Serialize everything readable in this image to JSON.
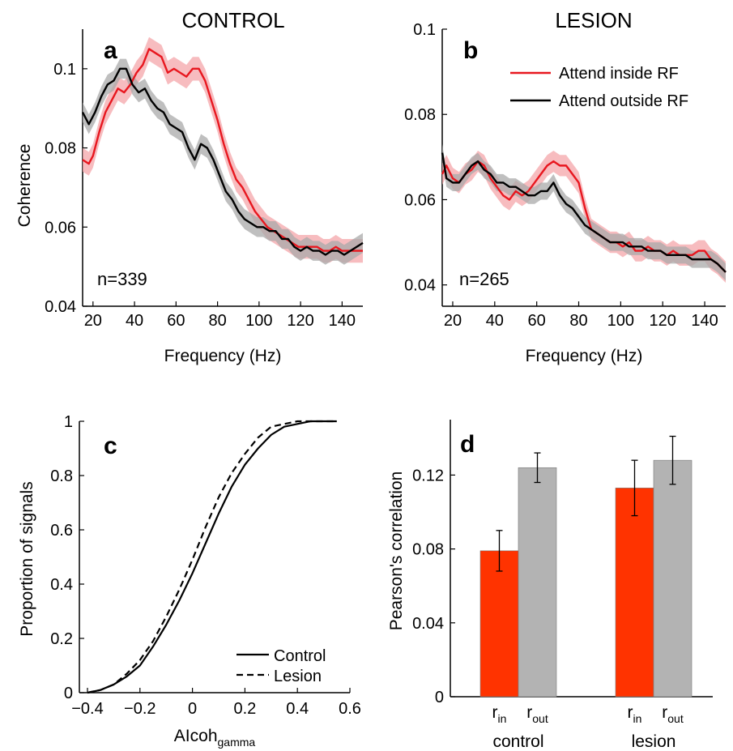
{
  "chart_data": [
    {
      "panel": "a",
      "type": "line",
      "title": "CONTROL",
      "xlabel": "Frequency (Hz)",
      "ylabel": "Coherence",
      "xlim": [
        15,
        150
      ],
      "ylim": [
        0.04,
        0.11
      ],
      "xticks": [
        "20",
        "40",
        "60",
        "80",
        "100",
        "120",
        "140"
      ],
      "yticks": [
        "0.04",
        "0.06",
        "0.08",
        "0.1"
      ],
      "annotation": "n=339",
      "series": [
        {
          "name": "Attend inside RF",
          "color": "#e8171f",
          "band_color": "#f4a6a9",
          "band": 0.003,
          "x": [
            15,
            18,
            20,
            23,
            26,
            29,
            32,
            35,
            38,
            41,
            44,
            47,
            50,
            53,
            56,
            59,
            62,
            65,
            68,
            71,
            74,
            77,
            80,
            83,
            86,
            89,
            92,
            95,
            98,
            101,
            104,
            107,
            110,
            113,
            116,
            119,
            122,
            125,
            128,
            131,
            134,
            137,
            140,
            143,
            146,
            150
          ],
          "y": [
            0.077,
            0.076,
            0.078,
            0.084,
            0.089,
            0.092,
            0.095,
            0.094,
            0.096,
            0.099,
            0.101,
            0.105,
            0.104,
            0.103,
            0.099,
            0.1,
            0.099,
            0.098,
            0.1,
            0.1,
            0.097,
            0.092,
            0.087,
            0.081,
            0.076,
            0.072,
            0.07,
            0.067,
            0.064,
            0.062,
            0.06,
            0.059,
            0.058,
            0.057,
            0.056,
            0.055,
            0.055,
            0.055,
            0.055,
            0.054,
            0.054,
            0.055,
            0.054,
            0.054,
            0.054,
            0.054
          ]
        },
        {
          "name": "Attend outside RF",
          "color": "#000000",
          "band_color": "#aaaaaa",
          "band": 0.0025,
          "x": [
            15,
            18,
            21,
            24,
            27,
            30,
            33,
            36,
            39,
            42,
            45,
            48,
            51,
            54,
            57,
            60,
            63,
            66,
            69,
            72,
            75,
            78,
            81,
            84,
            87,
            90,
            93,
            96,
            99,
            102,
            105,
            108,
            111,
            114,
            117,
            120,
            123,
            126,
            129,
            132,
            135,
            138,
            141,
            144,
            147,
            150
          ],
          "y": [
            0.089,
            0.086,
            0.089,
            0.093,
            0.096,
            0.097,
            0.1,
            0.1,
            0.096,
            0.094,
            0.095,
            0.092,
            0.09,
            0.089,
            0.086,
            0.085,
            0.084,
            0.08,
            0.077,
            0.081,
            0.08,
            0.077,
            0.073,
            0.069,
            0.067,
            0.064,
            0.062,
            0.061,
            0.06,
            0.06,
            0.059,
            0.059,
            0.057,
            0.057,
            0.055,
            0.054,
            0.055,
            0.054,
            0.054,
            0.053,
            0.054,
            0.054,
            0.053,
            0.054,
            0.055,
            0.056
          ]
        }
      ]
    },
    {
      "panel": "b",
      "type": "line",
      "title": "LESION",
      "xlabel": "Frequency (Hz)",
      "ylabel": "",
      "xlim": [
        15,
        150
      ],
      "ylim": [
        0.035,
        0.1
      ],
      "xticks": [
        "20",
        "40",
        "60",
        "80",
        "100",
        "120",
        "140"
      ],
      "yticks": [
        "0.04",
        "0.06",
        "0.08",
        "0.1"
      ],
      "annotation": "n=265",
      "legend_position": "top-right",
      "series": [
        {
          "name": "Attend inside RF",
          "color": "#e8171f",
          "band_color": "#f4a6a9",
          "band": 0.0025,
          "x": [
            15,
            17,
            20,
            23,
            26,
            29,
            32,
            35,
            38,
            41,
            44,
            47,
            50,
            53,
            56,
            59,
            62,
            65,
            68,
            71,
            74,
            77,
            80,
            83,
            86,
            89,
            92,
            95,
            98,
            101,
            104,
            107,
            110,
            113,
            116,
            119,
            122,
            125,
            128,
            131,
            134,
            137,
            140,
            143,
            146,
            150
          ],
          "y": [
            0.066,
            0.068,
            0.065,
            0.064,
            0.066,
            0.067,
            0.069,
            0.068,
            0.065,
            0.063,
            0.061,
            0.06,
            0.062,
            0.061,
            0.062,
            0.064,
            0.066,
            0.068,
            0.069,
            0.068,
            0.068,
            0.066,
            0.064,
            0.058,
            0.053,
            0.052,
            0.051,
            0.05,
            0.05,
            0.049,
            0.05,
            0.048,
            0.048,
            0.049,
            0.048,
            0.048,
            0.047,
            0.048,
            0.047,
            0.047,
            0.047,
            0.048,
            0.048,
            0.046,
            0.045,
            0.043
          ]
        },
        {
          "name": "Attend outside RF",
          "color": "#000000",
          "band_color": "#aaaaaa",
          "band": 0.002,
          "x": [
            15,
            17,
            20,
            23,
            26,
            29,
            32,
            35,
            38,
            41,
            44,
            47,
            50,
            53,
            56,
            59,
            62,
            65,
            68,
            71,
            74,
            77,
            80,
            83,
            86,
            89,
            92,
            95,
            98,
            101,
            104,
            107,
            110,
            113,
            116,
            119,
            122,
            125,
            128,
            131,
            134,
            137,
            140,
            143,
            146,
            150
          ],
          "y": [
            0.071,
            0.065,
            0.064,
            0.064,
            0.066,
            0.068,
            0.069,
            0.067,
            0.066,
            0.064,
            0.064,
            0.063,
            0.063,
            0.062,
            0.061,
            0.061,
            0.062,
            0.062,
            0.064,
            0.061,
            0.059,
            0.058,
            0.056,
            0.054,
            0.053,
            0.052,
            0.051,
            0.05,
            0.05,
            0.05,
            0.049,
            0.049,
            0.049,
            0.048,
            0.048,
            0.048,
            0.047,
            0.047,
            0.047,
            0.047,
            0.046,
            0.046,
            0.046,
            0.046,
            0.045,
            0.043
          ]
        }
      ]
    },
    {
      "panel": "c",
      "type": "line",
      "title": "",
      "xlabel": "AIcoh",
      "xlabel_sub": "gamma",
      "ylabel": "Proportion of signals",
      "xlim": [
        -0.4,
        0.6
      ],
      "ylim": [
        0,
        1
      ],
      "xticks": [
        "−0.4",
        "−0.2",
        "0",
        "0.2",
        "0.4",
        "0.6"
      ],
      "yticks": [
        "0",
        "0.2",
        "0.4",
        "0.6",
        "0.8",
        "1"
      ],
      "legend_position": "bottom-right",
      "series": [
        {
          "name": "Control",
          "style": "solid",
          "x": [
            -0.4,
            -0.35,
            -0.3,
            -0.25,
            -0.2,
            -0.15,
            -0.1,
            -0.05,
            0,
            0.05,
            0.1,
            0.15,
            0.2,
            0.25,
            0.3,
            0.35,
            0.4,
            0.45,
            0.5,
            0.55
          ],
          "y": [
            0,
            0.01,
            0.03,
            0.06,
            0.1,
            0.17,
            0.25,
            0.34,
            0.44,
            0.55,
            0.66,
            0.76,
            0.84,
            0.9,
            0.95,
            0.98,
            0.99,
            1,
            1,
            1
          ]
        },
        {
          "name": "Lesion",
          "style": "dashed",
          "x": [
            -0.4,
            -0.35,
            -0.3,
            -0.25,
            -0.2,
            -0.15,
            -0.1,
            -0.05,
            0,
            0.05,
            0.1,
            0.15,
            0.2,
            0.25,
            0.3,
            0.35,
            0.4,
            0.45,
            0.5,
            0.55
          ],
          "y": [
            0,
            0.01,
            0.03,
            0.07,
            0.12,
            0.19,
            0.28,
            0.38,
            0.49,
            0.61,
            0.72,
            0.81,
            0.88,
            0.94,
            0.98,
            0.99,
            1,
            1,
            1,
            1
          ]
        }
      ]
    },
    {
      "panel": "d",
      "type": "bar",
      "title": "",
      "ylabel": "Pearson's correlation",
      "ylim": [
        0,
        0.15
      ],
      "yticks": [
        "0",
        "0.04",
        "0.08",
        "0.12"
      ],
      "groups": [
        "control",
        "lesion"
      ],
      "bar_label_main": "r",
      "bars": [
        {
          "group": "control",
          "sub": "in",
          "value": 0.079,
          "error": 0.011,
          "color": "#ff3300"
        },
        {
          "group": "control",
          "sub": "out",
          "value": 0.124,
          "error": 0.008,
          "color": "#b3b3b3"
        },
        {
          "group": "lesion",
          "sub": "in",
          "value": 0.113,
          "error": 0.015,
          "color": "#ff3300"
        },
        {
          "group": "lesion",
          "sub": "out",
          "value": 0.128,
          "error": 0.013,
          "color": "#b3b3b3"
        }
      ]
    }
  ]
}
